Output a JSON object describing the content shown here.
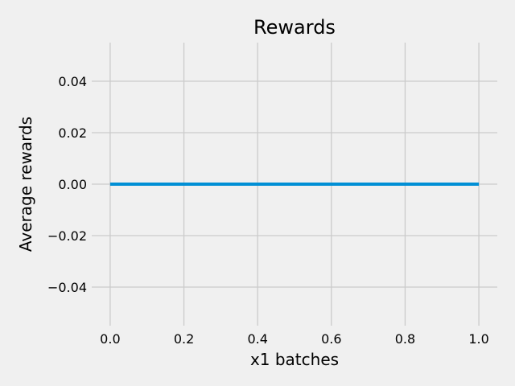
{
  "colors": {
    "background": "#f0f0f0",
    "grid": "#cbcbcb",
    "line": "#008fd5",
    "text": "#000000"
  },
  "chart_data": {
    "type": "line",
    "title": "Rewards",
    "xlabel": "x1 batches",
    "ylabel": "Average rewards",
    "xlim": [
      -0.05,
      1.05
    ],
    "ylim": [
      -0.055,
      0.055
    ],
    "grid": true,
    "x_ticks": [
      0.0,
      0.2,
      0.4,
      0.6,
      0.8,
      1.0
    ],
    "x_tick_labels": [
      "0.0",
      "0.2",
      "0.4",
      "0.6",
      "0.8",
      "1.0"
    ],
    "y_ticks": [
      -0.04,
      -0.02,
      0.0,
      0.02,
      0.04
    ],
    "y_tick_labels": [
      "−0.04",
      "−0.02",
      "0.00",
      "0.02",
      "0.04"
    ],
    "series": [
      {
        "x": [
          0.0,
          1.0
        ],
        "values": [
          0.0,
          0.0
        ],
        "color": "#008fd5"
      }
    ]
  }
}
